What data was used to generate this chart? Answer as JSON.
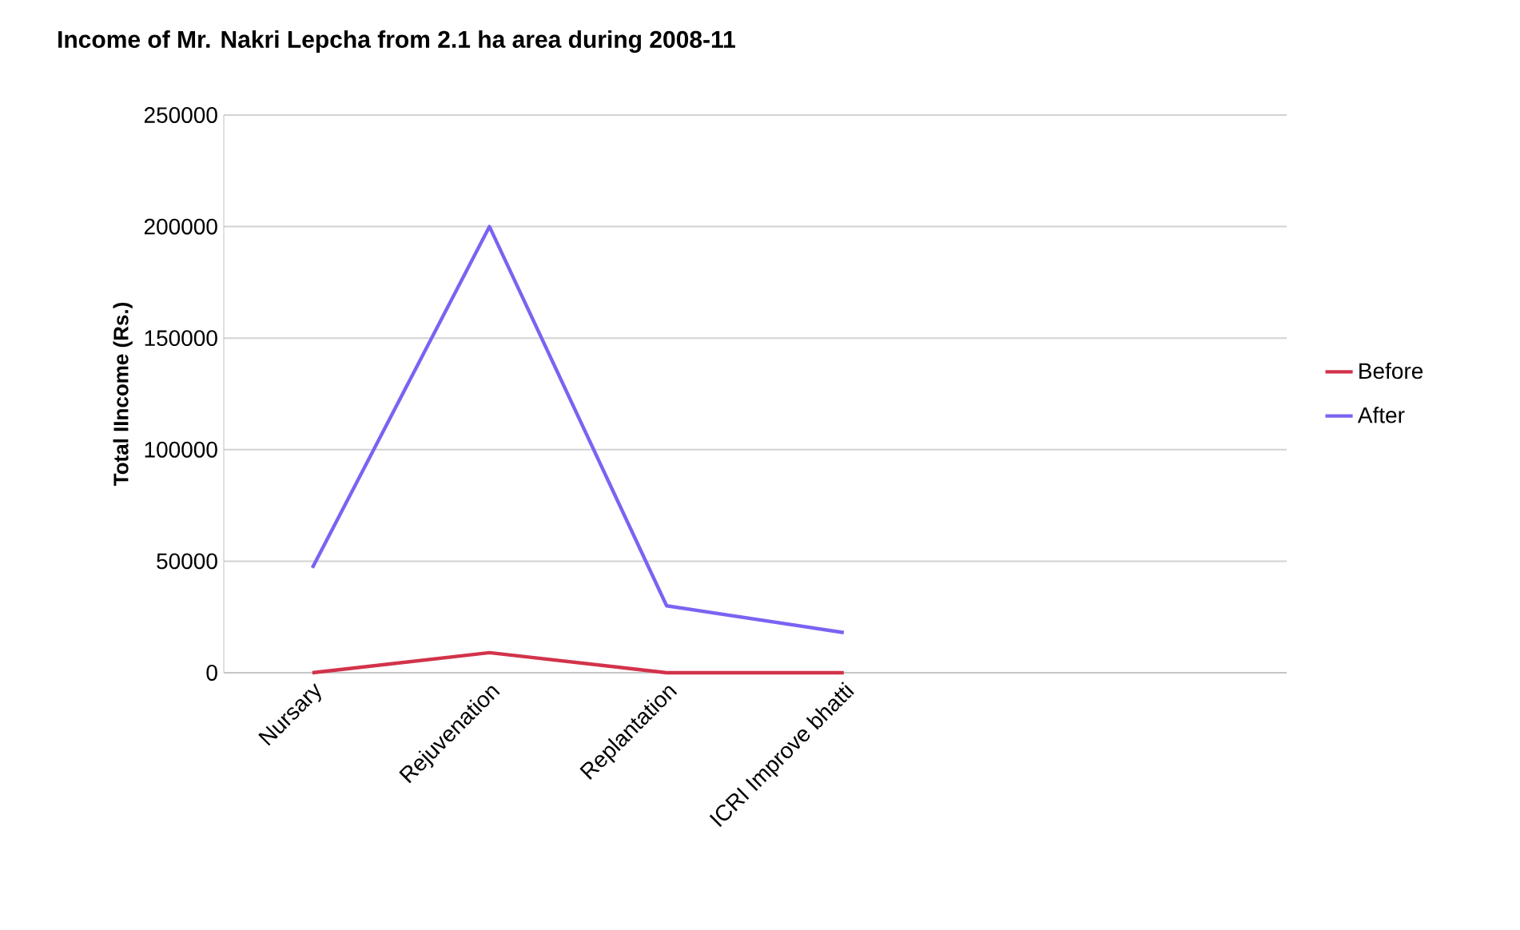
{
  "chart_data": {
    "type": "line",
    "title": "Income of Mr. Nakri Lepcha from 2.1 ha area during 2008-11",
    "ylabel": "Total IIncome (Rs.)",
    "categories": [
      "Nursary",
      "Rejuvenation",
      "Replantation",
      "ICRI Improve bhatti",
      null,
      null
    ],
    "series": [
      {
        "name": "Before",
        "color": "#d2334a",
        "values": [
          0,
          9000,
          0,
          0,
          null,
          null
        ]
      },
      {
        "name": "After",
        "color": "#7b63f2",
        "values": [
          47000,
          200000,
          30000,
          18000,
          null,
          null
        ]
      }
    ],
    "ylim": [
      0,
      250000
    ],
    "yticks": [
      0,
      50000,
      100000,
      150000,
      200000,
      250000
    ],
    "grid": "y",
    "legend": "right",
    "marker": "none",
    "line_style": "solid"
  }
}
